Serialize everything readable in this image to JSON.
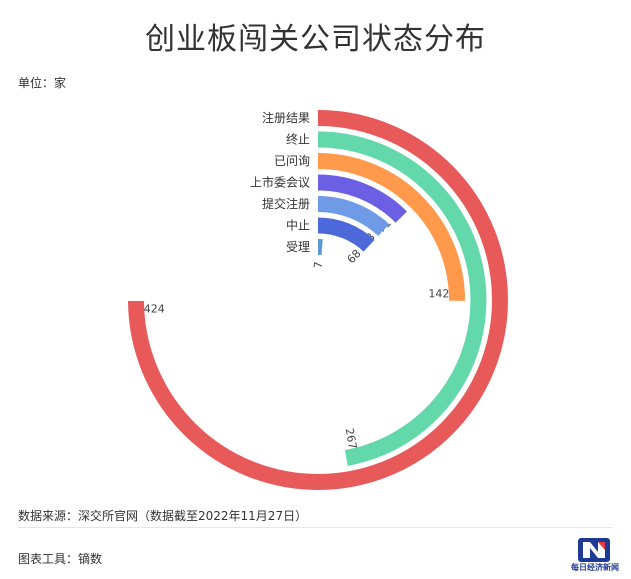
{
  "title": "创业板闯关公司状态分布",
  "unit": "单位：家",
  "source": "数据来源：深交所官网（数据截至2022年11月27日）",
  "tool": "图表工具：镝数",
  "logo_text": "每日经济新闻",
  "chart_data": {
    "type": "radial-bar",
    "start_angle_deg": 0,
    "sweep": "clockwise",
    "max_value_full_circle": 566,
    "categories": [
      "注册结果",
      "终止",
      "已问询",
      "上市委会议",
      "提交注册",
      "中止",
      "受理"
    ],
    "values": [
      424,
      267,
      142,
      71,
      68,
      68,
      7
    ],
    "colors": [
      "#e8595a",
      "#62d8ab",
      "#ff9a4d",
      "#6d5fe3",
      "#6f9ae6",
      "#4d69d9",
      "#5b9bd5"
    ]
  }
}
